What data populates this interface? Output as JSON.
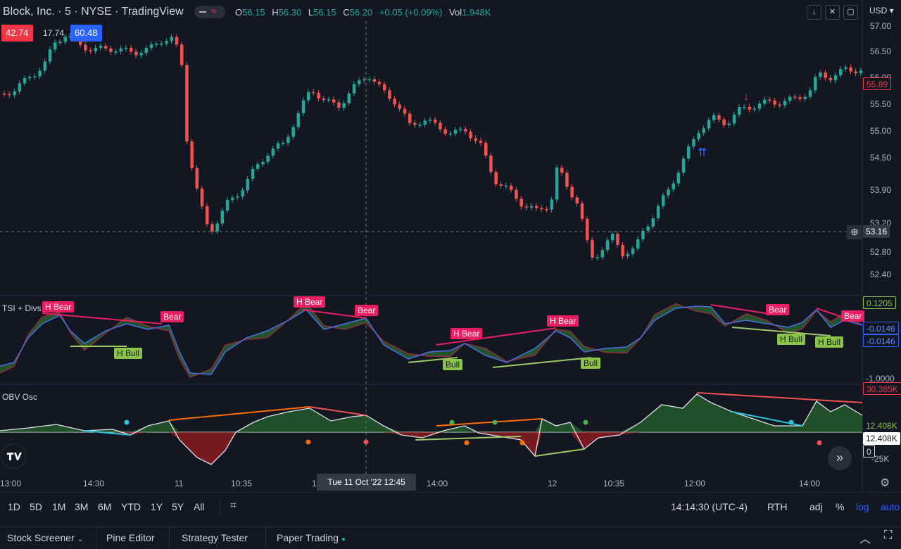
{
  "header": {
    "symbol_title": "Block, Inc. · 5 · NYSE · TradingView",
    "ohlc": {
      "o_label": "O",
      "o": "56.15",
      "h_label": "H",
      "h": "56.30",
      "l_label": "L",
      "l": "56.15",
      "c_label": "C",
      "c": "56.20",
      "change": "+0.05 (+0.09%)",
      "vol_label": "Vol",
      "vol": "1.948K"
    },
    "bid": "42.74",
    "spread": "17.74",
    "ask": "60.48",
    "currency": "USD"
  },
  "main_pane": {
    "price_ticks": [
      "57.00",
      "56.50",
      "56.00",
      "55.50",
      "55.00",
      "54.50",
      "53.90",
      "53.20",
      "52.80",
      "52.40"
    ],
    "last_price": "55.89",
    "crosshair_price": "53.16"
  },
  "tsi_pane": {
    "label": "TSI + Divs",
    "ticks": [
      "-1.0000"
    ],
    "value_tag_1": "0.1205",
    "value_tag_2": "-0.0146",
    "value_tag_3": "-0.0146",
    "divergence_labels": [
      {
        "text": "H Bear"
      },
      {
        "text": "Bear"
      },
      {
        "text": "H Bear"
      },
      {
        "text": "Bear"
      },
      {
        "text": "H Bear"
      },
      {
        "text": "H Bear"
      },
      {
        "text": "Bear"
      },
      {
        "text": "Bear"
      },
      {
        "text": "H Bull"
      },
      {
        "text": "Bull"
      },
      {
        "text": "Bull"
      },
      {
        "text": "H Bull"
      },
      {
        "text": "H Bull"
      }
    ]
  },
  "obv_pane": {
    "label": "OBV Osc",
    "tag_top": "30.385K",
    "tag_mid": "12.408K",
    "tag_value": "12.408K",
    "tag_zero": "0",
    "tick_bottom": "-25K"
  },
  "time_axis": {
    "labels": [
      "13:00",
      "14:30",
      "11",
      "10:35",
      "1",
      "14:00",
      "12",
      "10:35",
      "12:00",
      "14:00"
    ],
    "crosshair_time": "Tue 11 Oct '22  12:45"
  },
  "range_bar": {
    "ranges": [
      "1D",
      "5D",
      "1M",
      "3M",
      "6M",
      "YTD",
      "1Y",
      "5Y",
      "All"
    ],
    "clock": "14:14:30 (UTC-4)",
    "session": "RTH",
    "adj": "adj",
    "percent": "%",
    "log": "log",
    "auto": "auto"
  },
  "bottom_tabs": [
    "Stock Screener",
    "Pine Editor",
    "Strategy Tester",
    "Paper Trading"
  ],
  "colors": {
    "up": "#26a69a",
    "down": "#ef5350",
    "bg": "#131722",
    "bear_label": "#e91e63",
    "bull_label": "#8bc34a",
    "accent": "#2962ff"
  }
}
